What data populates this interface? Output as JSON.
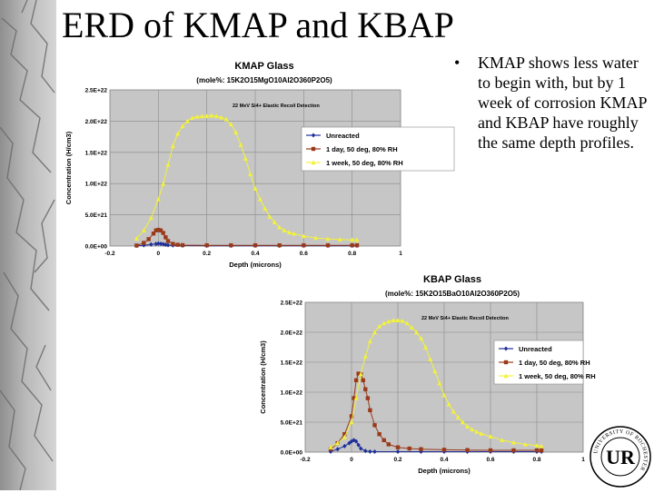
{
  "slide": {
    "title": "ERD of KMAP and KBAP",
    "bullet": "KMAP shows less water to begin with, but by 1 week of corrosion KMAP and KBAP have roughly the same depth profiles.",
    "logo_text": "UR",
    "logo_ring_text": "UNIVERSITY OF ROCHESTER"
  },
  "chart_data": [
    {
      "type": "line",
      "title": "KMAP Glass",
      "subtitle": "(mole%: 15K2O15MgO10Al2O360P2O5)",
      "annotation": "22 MeV Si4+ Elastic Recoil Detection",
      "xlabel": "Depth (microns)",
      "ylabel": "Concentration (H/cm3)",
      "xlim": [
        -0.2,
        1.0
      ],
      "ylim": [
        0,
        2.5e+22
      ],
      "xticks": [
        "-0.2",
        "0",
        "0.2",
        "0.4",
        "0.6",
        "0.8",
        "1"
      ],
      "yticks": [
        "0.0E+00",
        "5.0E+21",
        "1.0E+22",
        "1.5E+22",
        "2.0E+22",
        "2.5E+22"
      ],
      "grid": true,
      "legend": "right",
      "series": [
        {
          "name": "Unreacted",
          "color": "#1f2f9a",
          "marker": "diamond",
          "x": [
            -0.09,
            -0.06,
            -0.03,
            -0.01,
            0.0,
            0.01,
            0.02,
            0.03,
            0.04,
            0.06,
            0.1,
            0.2,
            0.3,
            0.4,
            0.5,
            0.6,
            0.7,
            0.8,
            0.82
          ],
          "y": [
            5e+19,
            1.2e+20,
            2.5e+20,
            3.5e+20,
            4e+20,
            3.7e+20,
            3e+20,
            2.2e+20,
            1.5e+20,
            1e+20,
            7e+19,
            5e+19,
            5e+19,
            5e+19,
            5e+19,
            5e+19,
            5e+19,
            5e+19,
            5e+19
          ]
        },
        {
          "name": "1 day, 50 deg, 80% RH",
          "color": "#9a3a1a",
          "marker": "square",
          "x": [
            -0.09,
            -0.06,
            -0.04,
            -0.02,
            -0.01,
            0.0,
            0.01,
            0.02,
            0.03,
            0.04,
            0.06,
            0.08,
            0.1,
            0.2,
            0.3,
            0.4,
            0.5,
            0.6,
            0.7,
            0.8,
            0.82
          ],
          "y": [
            8e+19,
            5e+20,
            1.1e+21,
            2e+21,
            2.5e+21,
            2.6e+21,
            2.5e+21,
            2.1e+21,
            1.4e+21,
            8e+20,
            3.5e+20,
            2e+20,
            1.5e+20,
            1.2e+20,
            1.2e+20,
            1.2e+20,
            1.2e+20,
            1.2e+20,
            1.2e+20,
            1.2e+20,
            1.2e+20
          ]
        },
        {
          "name": "1 week, 50 deg, 80% RH",
          "color": "#f2f23a",
          "marker": "triangle",
          "x": [
            -0.09,
            -0.06,
            -0.03,
            0.0,
            0.02,
            0.04,
            0.06,
            0.08,
            0.1,
            0.12,
            0.14,
            0.16,
            0.18,
            0.2,
            0.22,
            0.24,
            0.26,
            0.28,
            0.3,
            0.32,
            0.34,
            0.36,
            0.38,
            0.4,
            0.42,
            0.44,
            0.46,
            0.48,
            0.5,
            0.52,
            0.54,
            0.56,
            0.6,
            0.65,
            0.7,
            0.75,
            0.8,
            0.82
          ],
          "y": [
            1.2e+21,
            2.5e+21,
            4.5e+21,
            7.5e+21,
            1e+22,
            1.3e+22,
            1.6e+22,
            1.8e+22,
            1.92e+22,
            2e+22,
            2.05e+22,
            2.07e+22,
            2.08e+22,
            2.08e+22,
            2.09e+22,
            2.08e+22,
            2.06e+22,
            2.03e+22,
            1.95e+22,
            1.82e+22,
            1.62e+22,
            1.4e+22,
            1.15e+22,
            9.2e+21,
            7.5e+21,
            6e+21,
            4.7e+21,
            3.8e+21,
            3e+21,
            2.5e+21,
            2.2e+21,
            2e+21,
            1.6e+21,
            1.3e+21,
            1.15e+21,
            1.05e+21,
            1e+21,
            1e+21
          ]
        }
      ]
    },
    {
      "type": "line",
      "title": "KBAP Glass",
      "subtitle": "(mole%: 15K2O15BaO10Al2O360P2O5)",
      "annotation": "22 MeV Si4+ Elastic Recoil Detection",
      "xlabel": "Depth (microns)",
      "ylabel": "Concentration (H/cm3)",
      "xlim": [
        -0.2,
        1.0
      ],
      "ylim": [
        0,
        2.5e+22
      ],
      "xticks": [
        "-0.2",
        "0",
        "0.2",
        "0.4",
        "0.6",
        "0.8",
        "1"
      ],
      "yticks": [
        "0.0E+00",
        "5.0E+21",
        "1.0E+22",
        "1.5E+22",
        "2.0E+22",
        "2.5E+22"
      ],
      "grid": true,
      "legend": "right",
      "series": [
        {
          "name": "Unreacted",
          "color": "#1f2f9a",
          "marker": "diamond",
          "x": [
            -0.09,
            -0.06,
            -0.03,
            -0.01,
            0.0,
            0.01,
            0.02,
            0.03,
            0.04,
            0.06,
            0.08,
            0.1,
            0.2,
            0.3,
            0.4,
            0.5,
            0.6,
            0.7,
            0.8,
            0.82
          ],
          "y": [
            1e+20,
            5e+20,
            1e+21,
            1.5e+21,
            1.8e+21,
            2e+21,
            1.8e+21,
            1.2e+21,
            6e+20,
            2e+20,
            1e+20,
            8e+19,
            8e+19,
            8e+19,
            8e+19,
            8e+19,
            8e+19,
            8e+19,
            8e+19,
            8e+19
          ]
        },
        {
          "name": "1 day, 50 deg, 80% RH",
          "color": "#9a3a1a",
          "marker": "square",
          "x": [
            -0.09,
            -0.06,
            -0.03,
            0.0,
            0.01,
            0.02,
            0.03,
            0.04,
            0.05,
            0.06,
            0.07,
            0.08,
            0.1,
            0.12,
            0.14,
            0.16,
            0.2,
            0.25,
            0.3,
            0.4,
            0.5,
            0.6,
            0.7,
            0.8,
            0.82
          ],
          "y": [
            5e+20,
            1.5e+21,
            3e+21,
            6e+21,
            9e+21,
            1.2e+22,
            1.31e+22,
            1.3e+22,
            1.2e+22,
            1.05e+22,
            9e+21,
            7e+21,
            4.5e+21,
            3e+21,
            2e+21,
            1.3e+21,
            8e+20,
            6e+20,
            5e+20,
            4e+20,
            3.5e+20,
            3e+20,
            3e+20,
            3e+20,
            3e+20
          ]
        },
        {
          "name": "1 week, 50 deg, 80% RH",
          "color": "#f2f23a",
          "marker": "triangle",
          "x": [
            -0.09,
            -0.06,
            -0.03,
            0.0,
            0.02,
            0.04,
            0.06,
            0.08,
            0.1,
            0.12,
            0.14,
            0.16,
            0.18,
            0.2,
            0.22,
            0.24,
            0.26,
            0.28,
            0.3,
            0.32,
            0.34,
            0.36,
            0.38,
            0.4,
            0.42,
            0.44,
            0.46,
            0.48,
            0.5,
            0.52,
            0.54,
            0.56,
            0.6,
            0.65,
            0.7,
            0.75,
            0.8,
            0.82
          ],
          "y": [
            8e+20,
            1.5e+21,
            2.5e+21,
            5e+21,
            9e+21,
            1.3e+22,
            1.6e+22,
            1.85e+22,
            2e+22,
            2.1e+22,
            2.15e+22,
            2.18e+22,
            2.2e+22,
            2.2e+22,
            2.19e+22,
            2.15e+22,
            2.08e+22,
            2e+22,
            1.9e+22,
            1.75e+22,
            1.55e+22,
            1.35e+22,
            1.15e+22,
            9.5e+21,
            8e+21,
            6.8e+21,
            5.8e+21,
            5e+21,
            4.3e+21,
            3.8e+21,
            3.4e+21,
            3.1e+21,
            2.6e+21,
            2e+21,
            1.6e+21,
            1.3e+21,
            1.1e+21,
            1e+21
          ]
        }
      ]
    }
  ]
}
